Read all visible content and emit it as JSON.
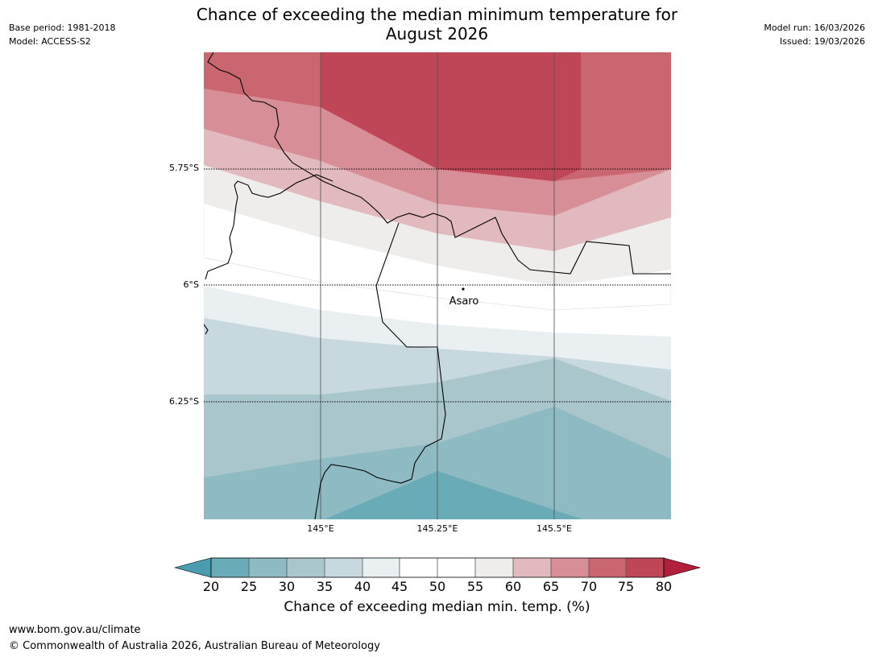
{
  "header": {
    "title_line1": "Chance of exceeding the median minimum temperature for",
    "title_line2": "August 2026",
    "base_period": "Base period: 1981-2018",
    "model": "Model: ACCESS-S2",
    "model_run": "Model run: 16/03/2026",
    "issued": "Issued: 19/03/2026"
  },
  "map": {
    "place_label": "Asaro",
    "lat_labels": [
      "5.75°S",
      "6°S",
      "6.25°S"
    ],
    "lon_labels": [
      "145°E",
      "145.25°E",
      "145.5°E"
    ]
  },
  "colorbar": {
    "ticks": [
      "20",
      "25",
      "30",
      "35",
      "40",
      "45",
      "50",
      "55",
      "60",
      "65",
      "70",
      "75",
      "80"
    ],
    "label": "Chance of exceeding median min. temp. (%)",
    "under_color": "#4a9daf",
    "over_color": "#b11f3b",
    "colors": [
      "#6aabb8",
      "#8ebac3",
      "#a9c6cc",
      "#c7d9de",
      "#eaf0f2",
      "#ffffff",
      "#ffffff",
      "#eeedeb",
      "#e2b9be",
      "#d78e96",
      "#ca6670",
      "#bf4656"
    ]
  },
  "footer": {
    "url": "www.bom.gov.au/climate",
    "copyright": "© Commonwealth of Australia 2026, Australian Bureau of Meteorology"
  }
}
